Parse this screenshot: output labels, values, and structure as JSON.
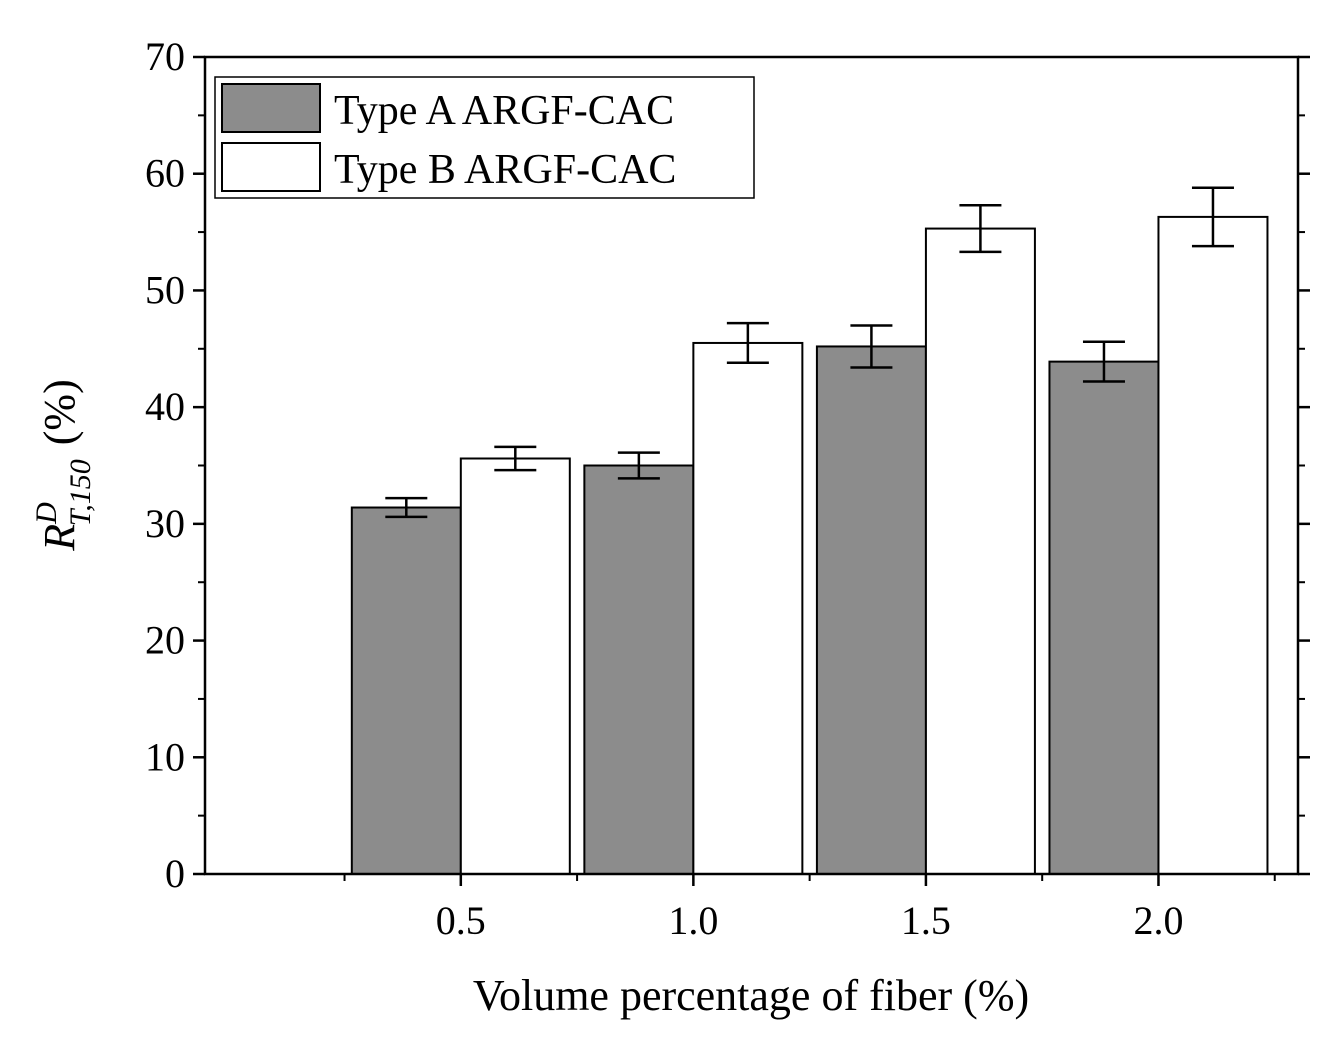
{
  "chart_data": {
    "type": "bar",
    "title": "",
    "xlabel": "Volume percentage of fiber (%)",
    "ylabel": {
      "symbol": "R",
      "superscript": "D",
      "subscript": "T,150",
      "unit": "(%)"
    },
    "categories": [
      "0.5",
      "1.0",
      "1.5",
      "2.0"
    ],
    "ylim": [
      0,
      70
    ],
    "yticks": [
      "0",
      "10",
      "20",
      "30",
      "40",
      "50",
      "60",
      "70"
    ],
    "legend_position": "top-left",
    "series": [
      {
        "name": "Type A ARGF-CAC",
        "color": "#8c8c8c",
        "values": [
          31.4,
          35.0,
          45.2,
          43.9
        ],
        "errors": [
          0.8,
          1.1,
          1.8,
          1.7
        ]
      },
      {
        "name": "Type B ARGF-CAC",
        "color": "#ffffff",
        "values": [
          35.6,
          45.5,
          55.3,
          56.3
        ],
        "errors": [
          1.0,
          1.7,
          2.0,
          2.5
        ]
      }
    ]
  }
}
